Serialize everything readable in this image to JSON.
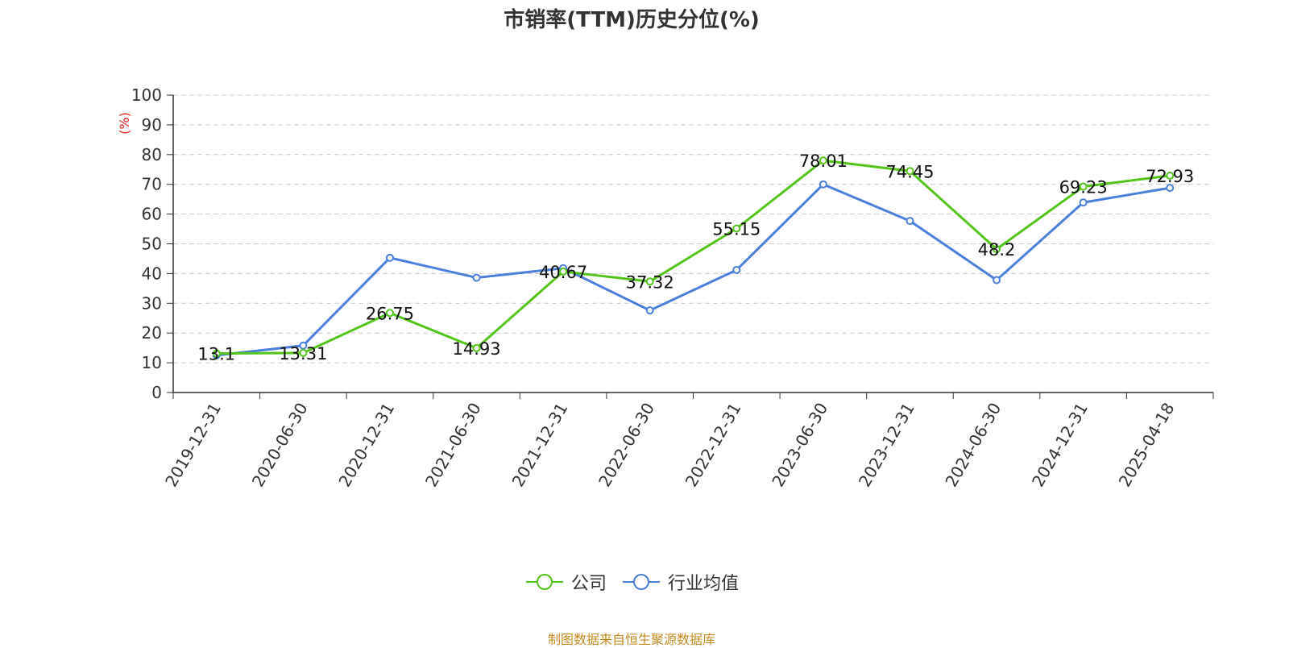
{
  "chart_data": {
    "type": "line",
    "title": "市销率(TTM)历史分位(%)",
    "ylabel": "(%)",
    "xlabel": "",
    "categories": [
      "2019-12-31",
      "2020-06-30",
      "2020-12-31",
      "2021-06-30",
      "2021-12-31",
      "2022-06-30",
      "2022-12-31",
      "2023-06-30",
      "2023-12-31",
      "2024-06-30",
      "2024-12-31",
      "2025-04-18"
    ],
    "ylim": [
      0,
      100
    ],
    "yticks": [
      "0",
      "10",
      "20",
      "30",
      "40",
      "50",
      "60",
      "70",
      "80",
      "90",
      "100"
    ],
    "grid": "horizontal-dashed",
    "legend_position": "bottom",
    "series": [
      {
        "name": "公司",
        "color": "#52c41a",
        "values": [
          13.1,
          13.31,
          26.75,
          14.93,
          40.67,
          37.32,
          55.15,
          78.01,
          74.45,
          48.2,
          69.23,
          72.93
        ],
        "labels": [
          "13.1",
          "13.31",
          "26.75",
          "14.93",
          "40.67",
          "37.32",
          "55.15",
          "78.01",
          "74.45",
          "48.2",
          "69.23",
          "72.93"
        ]
      },
      {
        "name": "行业均值",
        "color": "#4a7fdc",
        "values": [
          12.5,
          15.8,
          45.3,
          38.6,
          41.8,
          27.6,
          41.2,
          70.0,
          57.7,
          37.8,
          63.9,
          68.8
        ]
      }
    ]
  },
  "source_text": "制图数据来自恒生聚源数据库"
}
